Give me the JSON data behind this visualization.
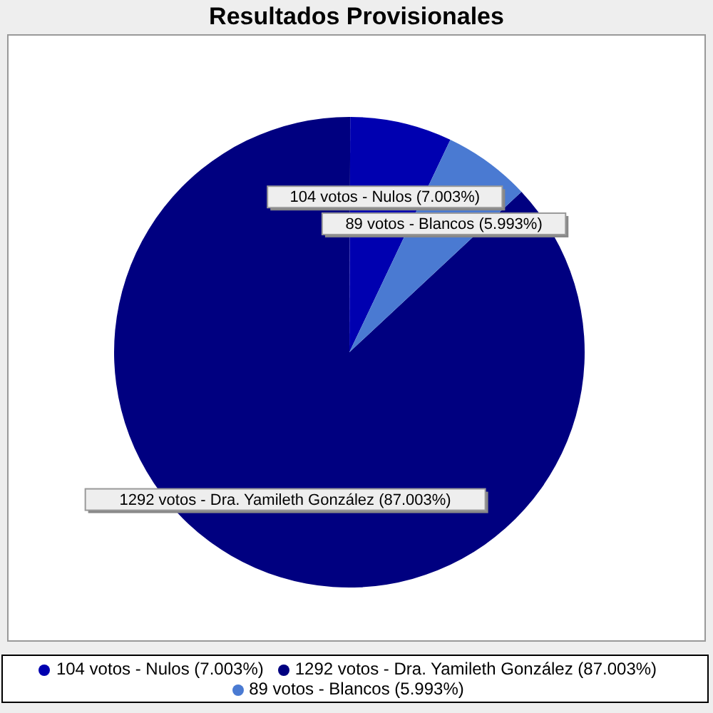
{
  "chart_data": {
    "type": "pie",
    "title": "Resultados Provisionales",
    "categories": [
      "1292 votos - Dra. Yamileth González (87.003%)",
      "104 votos - Nulos (7.003%)",
      "89 votos - Blancos (5.993%)"
    ],
    "values": [
      1292,
      104,
      89
    ],
    "colors": [
      "#000080",
      "#0000b0",
      "#4a7ad2"
    ],
    "value_labels": [
      "1292 votos - Dra. Yamileth González (87.003%)",
      "104 votos - Nulos (7.003%)",
      "89 votos - Blancos (5.993%)"
    ],
    "legend": "bottom"
  }
}
